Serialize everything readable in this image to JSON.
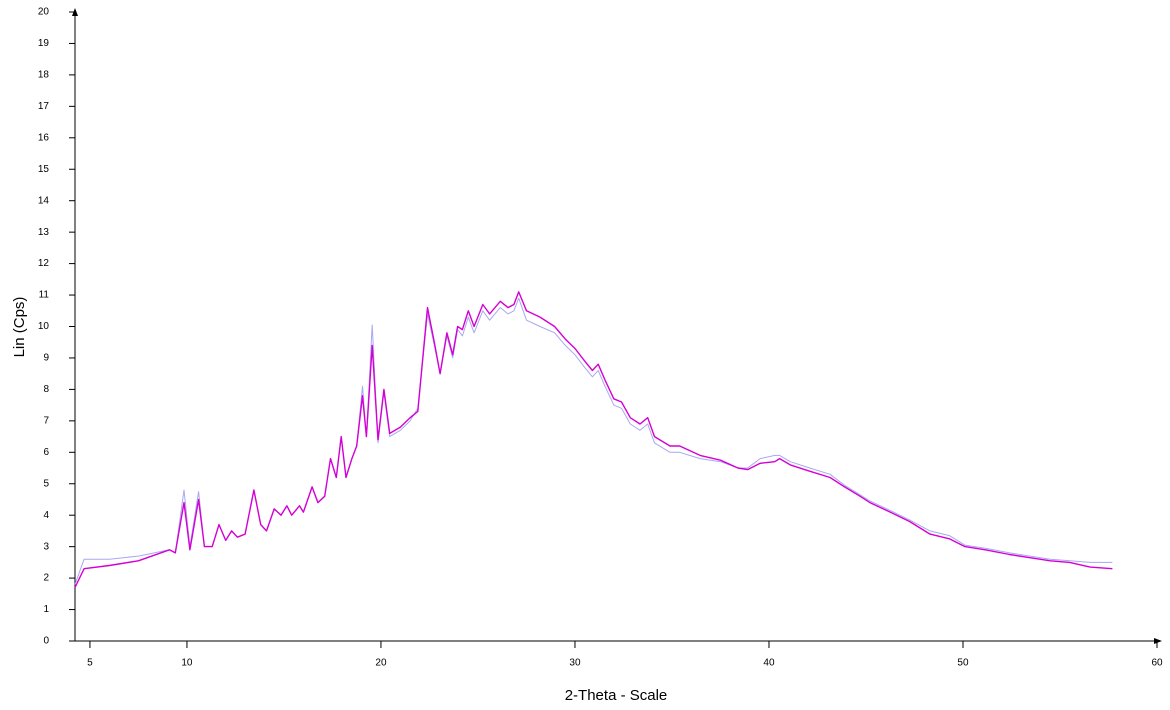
{
  "chart_data": {
    "type": "line",
    "xlabel": "2-Theta - Scale",
    "ylabel": "Lin (Cps)",
    "xlim": [
      4.23,
      60
    ],
    "ylim": [
      0,
      20
    ],
    "xticks": [
      5,
      10,
      20,
      30,
      40,
      50,
      60
    ],
    "yticks": [
      0,
      1,
      2,
      3,
      4,
      5,
      6,
      7,
      8,
      9,
      10,
      11,
      12,
      13,
      14,
      15,
      16,
      17,
      18,
      19,
      20
    ],
    "x": [
      4.23,
      4.7,
      6,
      7.5,
      9.1,
      9.4,
      9.85,
      10.15,
      10.6,
      10.9,
      11.3,
      11.65,
      12,
      12.3,
      12.6,
      13,
      13.45,
      13.8,
      14.1,
      14.5,
      14.85,
      15.15,
      15.4,
      15.8,
      16,
      16.45,
      16.75,
      17.1,
      17.4,
      17.7,
      17.95,
      18.2,
      18.5,
      18.75,
      19.05,
      19.25,
      19.55,
      19.85,
      20.15,
      20.45,
      21,
      21.5,
      21.9,
      22.4,
      22.75,
      23.05,
      23.4,
      23.7,
      23.95,
      24.2,
      24.5,
      24.8,
      25.25,
      25.6,
      26.15,
      26.55,
      26.85,
      27.1,
      27.5,
      28.2,
      28.95,
      29.5,
      30,
      30.5,
      30.9,
      31.2,
      31.55,
      32,
      32.4,
      32.85,
      33.35,
      33.75,
      34.1,
      34.9,
      35.4,
      36.45,
      37.5,
      38.4,
      38.9,
      39.55,
      40.3,
      40.55,
      41.1,
      42.1,
      43.15,
      43.9,
      44.7,
      45.2,
      46.25,
      47.25,
      48.3,
      49.3,
      50.1,
      51.15,
      52.4,
      53.45,
      54.5,
      55.5,
      56.55,
      57.7
    ],
    "series": [
      {
        "color": "#a8a8f0",
        "values": [
          1.8,
          2.6,
          2.6,
          2.7,
          2.9,
          2.8,
          4.8,
          3.0,
          4.75,
          3.0,
          3.0,
          3.7,
          3.2,
          3.5,
          3.3,
          3.4,
          4.8,
          3.7,
          3.5,
          4.2,
          4.0,
          4.3,
          4.0,
          4.3,
          4.1,
          4.9,
          4.4,
          4.6,
          5.8,
          5.2,
          6.5,
          5.2,
          5.8,
          6.2,
          8.1,
          6.5,
          10.05,
          6.3,
          7.9,
          6.5,
          6.7,
          7.0,
          7.4,
          10.4,
          9.4,
          8.5,
          9.7,
          9.0,
          9.9,
          9.7,
          10.3,
          9.8,
          10.5,
          10.2,
          10.6,
          10.4,
          10.5,
          10.9,
          10.2,
          10.0,
          9.8,
          9.4,
          9.1,
          8.7,
          8.4,
          8.6,
          8.1,
          7.5,
          7.4,
          6.9,
          6.7,
          6.9,
          6.3,
          6.0,
          6.0,
          5.8,
          5.7,
          5.5,
          5.5,
          5.8,
          5.9,
          5.9,
          5.7,
          5.5,
          5.3,
          4.95,
          4.65,
          4.45,
          4.15,
          3.85,
          3.5,
          3.35,
          3.05,
          2.95,
          2.8,
          2.7,
          2.6,
          2.55,
          2.5,
          2.5
        ]
      },
      {
        "color": "#d400d4",
        "values": [
          1.7,
          2.3,
          2.4,
          2.55,
          2.9,
          2.8,
          4.4,
          2.9,
          4.5,
          3.0,
          3.0,
          3.7,
          3.2,
          3.5,
          3.3,
          3.4,
          4.8,
          3.7,
          3.5,
          4.2,
          4.0,
          4.3,
          4.0,
          4.3,
          4.1,
          4.9,
          4.4,
          4.6,
          5.8,
          5.2,
          6.5,
          5.2,
          5.8,
          6.2,
          7.8,
          6.5,
          9.4,
          6.4,
          8.0,
          6.6,
          6.8,
          7.1,
          7.3,
          10.6,
          9.5,
          8.5,
          9.8,
          9.1,
          10.0,
          9.9,
          10.5,
          10.0,
          10.7,
          10.4,
          10.8,
          10.6,
          10.7,
          11.1,
          10.5,
          10.3,
          10.0,
          9.6,
          9.3,
          8.9,
          8.6,
          8.8,
          8.3,
          7.7,
          7.6,
          7.1,
          6.9,
          7.1,
          6.5,
          6.2,
          6.2,
          5.9,
          5.75,
          5.5,
          5.45,
          5.65,
          5.7,
          5.8,
          5.6,
          5.4,
          5.2,
          4.9,
          4.6,
          4.4,
          4.1,
          3.8,
          3.4,
          3.25,
          3.0,
          2.9,
          2.75,
          2.65,
          2.55,
          2.5,
          2.35,
          2.3
        ]
      }
    ]
  }
}
